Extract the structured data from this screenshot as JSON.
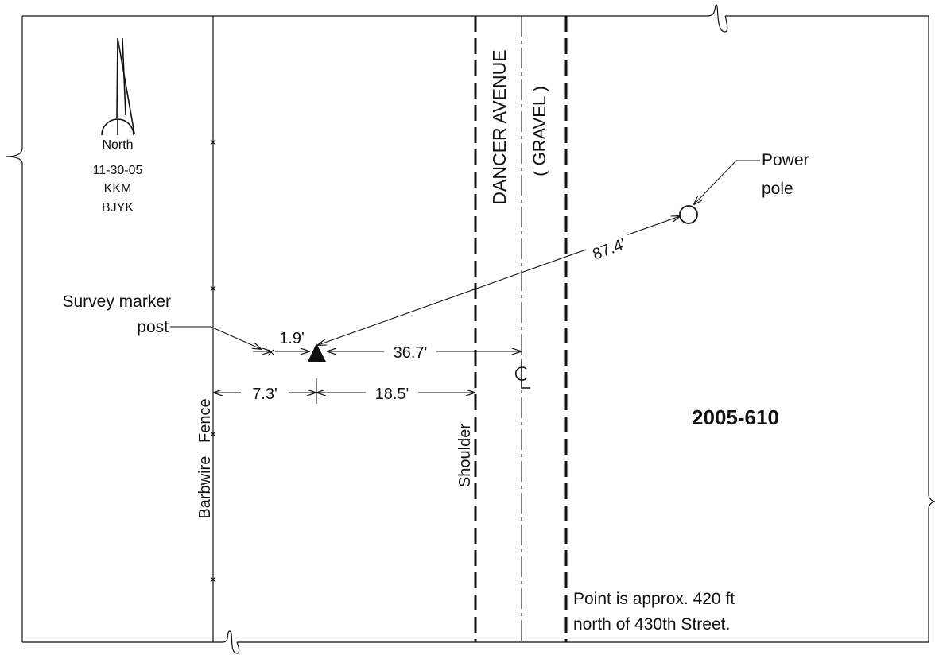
{
  "north_arrow": {
    "label": "North",
    "date": "11-30-05",
    "initials_1": "KKM",
    "initials_2": "BJYK"
  },
  "labels": {
    "survey_marker_line1": "Survey marker",
    "survey_marker_line2": "post",
    "power_pole_line1": "Power",
    "power_pole_line2": "pole",
    "road_name": "DANCER AVENUE",
    "road_surface": "( GRAVEL )",
    "fence": "Barbwire   Fence",
    "shoulder": "Shoulder",
    "centerline": "CL",
    "point_id": "2005-610",
    "note_line1": "Point is approx. 420 ft",
    "note_line2": "north of 430th Street."
  },
  "dimensions": {
    "to_power_pole": "87.4'",
    "marker_offset": "1.9'",
    "to_centerline": "36.7'",
    "to_fence": "7.3'",
    "to_shoulder": "18.5'"
  },
  "colors": {
    "ink": "#111111",
    "paper": "#ffffff"
  }
}
